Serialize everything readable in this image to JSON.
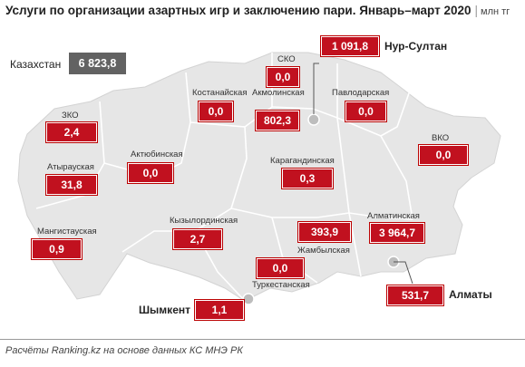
{
  "title": {
    "main": "Услуги по организации азартных игр и заключению пари. Январь–март 2020",
    "unit": "млн тг"
  },
  "total": {
    "label": "Казахстан",
    "value": "6 823,8"
  },
  "regions": {
    "sko": {
      "name": "СКО",
      "value": "0,0"
    },
    "kostanay": {
      "name": "Костанайская",
      "value": "0,0"
    },
    "akmola": {
      "name": "Акмолинская",
      "value": "802,3"
    },
    "pavlodar": {
      "name": "Павлодарская",
      "value": "0,0"
    },
    "zko": {
      "name": "ЗКО",
      "value": "2,4"
    },
    "vko": {
      "name": "ВКО",
      "value": "0,0"
    },
    "atyrau": {
      "name": "Атырауская",
      "value": "31,8"
    },
    "aktobe": {
      "name": "Актюбинская",
      "value": "0,0"
    },
    "karaganda": {
      "name": "Карагандинская",
      "value": "0,3"
    },
    "mangystau": {
      "name": "Мангистауская",
      "value": "0,9"
    },
    "kyzylorda": {
      "name": "Кызылординская",
      "value": "2,7"
    },
    "almaty_region": {
      "name": "Алматинская",
      "value": "3 964,7"
    },
    "zhambyl": {
      "name": "Жамбылская",
      "value": "393,9"
    },
    "turkestan": {
      "name": "Туркестанская",
      "value": "0,0"
    }
  },
  "cities": {
    "nursultan": {
      "name": "Нур-Султан",
      "value": "1 091,8"
    },
    "almaty": {
      "name": "Алматы",
      "value": "531,7"
    },
    "shymkent": {
      "name": "Шымкент",
      "value": "1,1"
    }
  },
  "footer": "Расчёты Ranking.kz на основе данных  КС МНЭ РК",
  "colors": {
    "value_box": "#c1111f",
    "total_box": "#626262",
    "map_fill": "#e6e6e6",
    "map_border": "#ffffff"
  }
}
